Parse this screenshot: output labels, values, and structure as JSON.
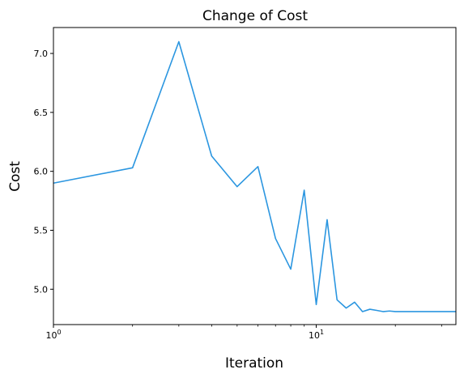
{
  "chart_data": {
    "type": "line",
    "title": "Change of Cost",
    "xlabel": "Iteration",
    "ylabel": "Cost",
    "xscale": "log",
    "xlim": [
      1,
      34
    ],
    "ylim": [
      4.7,
      7.22
    ],
    "xticks": [
      {
        "value": 1,
        "base": "10",
        "exp": "0"
      },
      {
        "value": 10,
        "base": "10",
        "exp": "1"
      }
    ],
    "yticks": [
      {
        "value": 5.0,
        "label": "5.0"
      },
      {
        "value": 5.5,
        "label": "5.5"
      },
      {
        "value": 6.0,
        "label": "6.0"
      },
      {
        "value": 6.5,
        "label": "6.5"
      },
      {
        "value": 7.0,
        "label": "7.0"
      }
    ],
    "grid": false,
    "line_color": "#2b96e0",
    "series": [
      {
        "x": [
          1,
          2,
          3,
          4,
          5,
          6,
          7,
          8,
          9,
          10,
          11,
          12,
          13,
          14,
          15,
          16,
          17,
          18,
          19,
          20,
          21,
          22,
          23,
          24,
          25,
          26,
          27,
          28,
          29,
          30,
          31,
          32,
          33,
          34
        ],
        "values": [
          5.9,
          6.03,
          7.1,
          6.13,
          5.87,
          6.04,
          5.43,
          5.17,
          5.84,
          4.87,
          5.59,
          4.91,
          4.84,
          4.89,
          4.81,
          4.83,
          4.82,
          4.81,
          4.815,
          4.81,
          4.81,
          4.81,
          4.81,
          4.81,
          4.81,
          4.81,
          4.81,
          4.81,
          4.81,
          4.81,
          4.81,
          4.81,
          4.81,
          4.81
        ]
      }
    ]
  }
}
